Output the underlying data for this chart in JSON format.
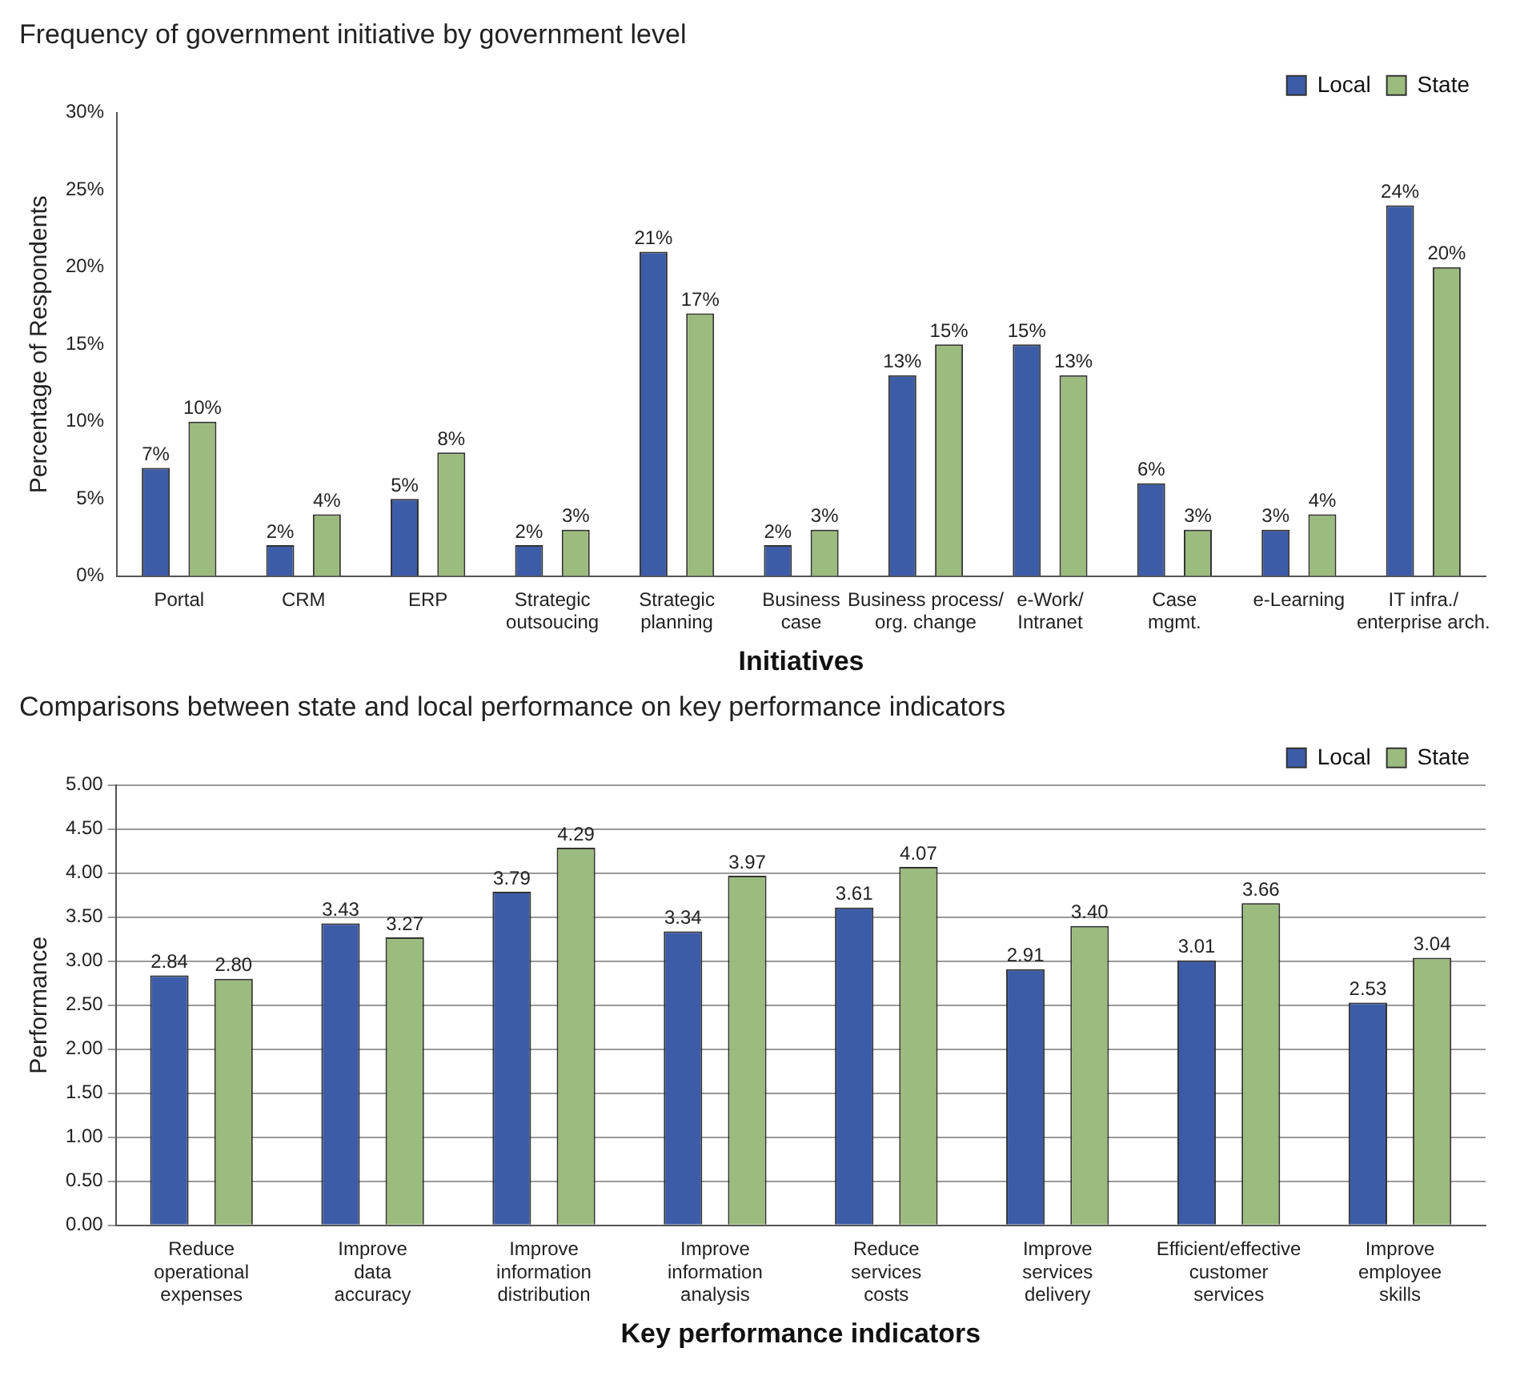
{
  "chart_data": [
    {
      "type": "bar",
      "title": "Frequency of government initiative by government level",
      "xlabel": "Initiatives",
      "ylabel": "Percentage of Respondents",
      "categories": [
        "Portal",
        "CRM",
        "ERP",
        "Strategic\noutsoucing",
        "Strategic\nplanning",
        "Business\ncase",
        "Business process/\norg. change",
        "e-Work/\nIntranet",
        "Case\nmgmt.",
        "e-Learning",
        "IT infra./\nenterprise arch."
      ],
      "series": [
        {
          "name": "Local",
          "color": "#3c5ca8",
          "values": [
            7,
            2,
            5,
            2,
            21,
            2,
            13,
            15,
            6,
            3,
            24
          ],
          "value_labels": [
            "7%",
            "2%",
            "5%",
            "2%",
            "21%",
            "2%",
            "13%",
            "15%",
            "6%",
            "3%",
            "24%"
          ]
        },
        {
          "name": "State",
          "color": "#9cbb7e",
          "values": [
            10,
            4,
            8,
            3,
            17,
            3,
            15,
            13,
            3,
            4,
            20
          ],
          "value_labels": [
            "10%",
            "4%",
            "8%",
            "3%",
            "17%",
            "3%",
            "15%",
            "13%",
            "3%",
            "4%",
            "20%"
          ]
        }
      ],
      "ylim": [
        0,
        30
      ],
      "yticks": [
        {
          "value": 0,
          "label": "0%"
        },
        {
          "value": 5,
          "label": "5%"
        },
        {
          "value": 10,
          "label": "10%"
        },
        {
          "value": 15,
          "label": "15%"
        },
        {
          "value": 20,
          "label": "20%"
        },
        {
          "value": 25,
          "label": "25%"
        },
        {
          "value": 30,
          "label": "30%"
        }
      ],
      "grid": false,
      "legend": "top right"
    },
    {
      "type": "bar",
      "title": "Comparisons between state and local performance on key performance indicators",
      "xlabel": "Key performance indicators",
      "ylabel": "Performance",
      "categories": [
        "Reduce\noperational\nexpenses",
        "Improve\ndata\naccuracy",
        "Improve\ninformation\ndistribution",
        "Improve\ninformation\nanalysis",
        "Reduce\nservices\ncosts",
        "Improve\nservices\ndelivery",
        "Efficient/effective\ncustomer\nservices",
        "Improve\nemployee\nskills"
      ],
      "series": [
        {
          "name": "Local",
          "color": "#3c5ca8",
          "values": [
            2.84,
            3.43,
            3.79,
            3.34,
            3.61,
            2.91,
            3.01,
            2.53
          ],
          "value_labels": [
            "2.84",
            "3.43",
            "3.79",
            "3.34",
            "3.61",
            "2.91",
            "3.01",
            "2.53"
          ]
        },
        {
          "name": "State",
          "color": "#9cbb7e",
          "values": [
            2.8,
            3.27,
            4.29,
            3.97,
            4.07,
            3.4,
            3.66,
            3.04
          ],
          "value_labels": [
            "2.80",
            "3.27",
            "4.29",
            "3.97",
            "4.07",
            "3.40",
            "3.66",
            "3.04"
          ]
        }
      ],
      "ylim": [
        0,
        5
      ],
      "yticks": [
        {
          "value": 0,
          "label": "0.00"
        },
        {
          "value": 0.5,
          "label": "0.50"
        },
        {
          "value": 1,
          "label": "1.00"
        },
        {
          "value": 1.5,
          "label": "1.50"
        },
        {
          "value": 2,
          "label": "2.00"
        },
        {
          "value": 2.5,
          "label": "2.50"
        },
        {
          "value": 3,
          "label": "3.00"
        },
        {
          "value": 3.5,
          "label": "3.50"
        },
        {
          "value": 4,
          "label": "4.00"
        },
        {
          "value": 4.5,
          "label": "4.50"
        },
        {
          "value": 5,
          "label": "5.00"
        }
      ],
      "grid": "y",
      "legend": "top right"
    }
  ]
}
